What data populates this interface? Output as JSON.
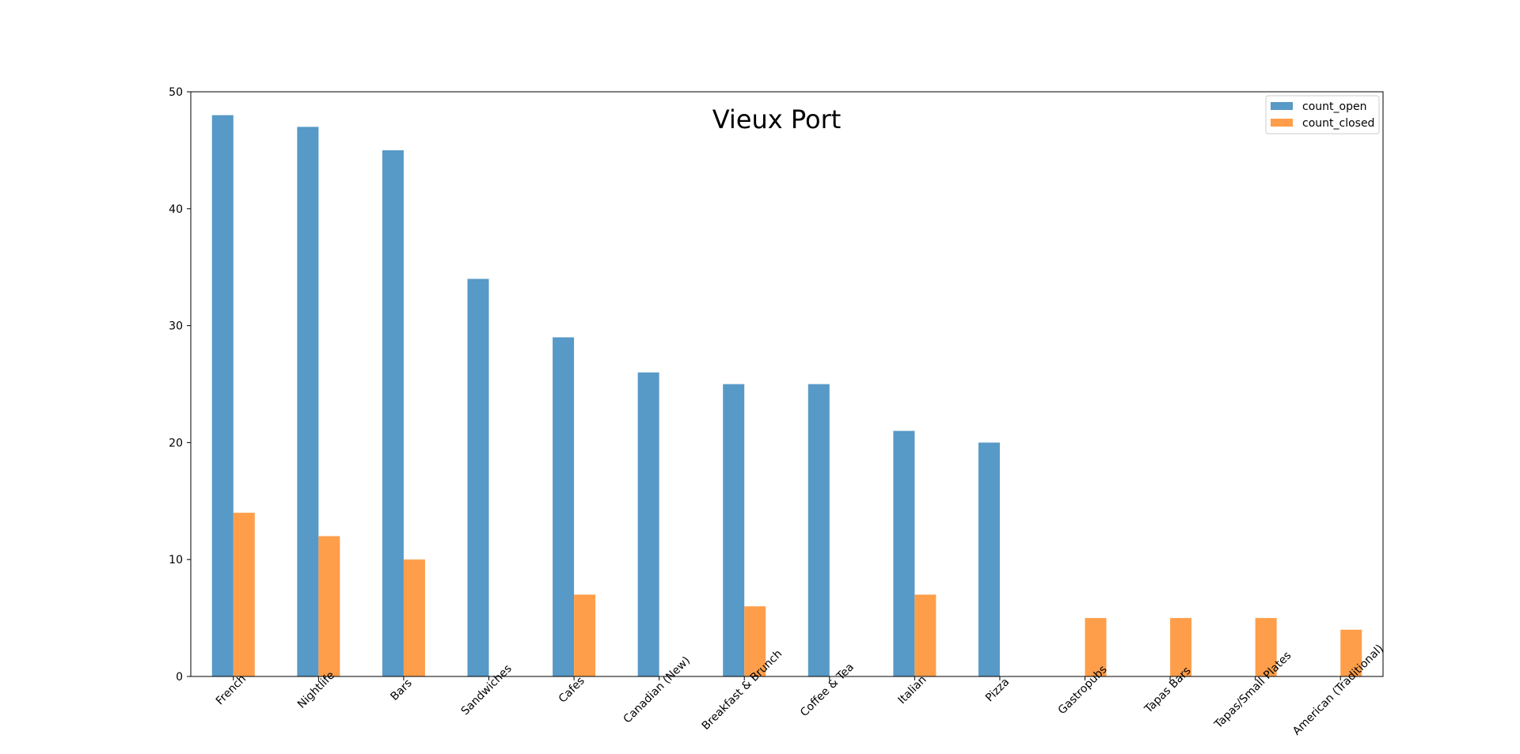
{
  "chart_data": {
    "type": "bar",
    "title": "Vieux Port",
    "xlabel": "",
    "ylabel": "",
    "ylim": [
      0,
      50
    ],
    "yticks": [
      0,
      10,
      20,
      30,
      40,
      50
    ],
    "grid": false,
    "legend_position": "top-right",
    "categories": [
      "French",
      "Nightlife",
      "Bars",
      "Sandwiches",
      "Cafes",
      "Canadian (New)",
      "Breakfast & Brunch",
      "Coffee & Tea",
      "Italian",
      "Pizza",
      "Gastropubs",
      "Tapas Bars",
      "Tapas/Small Plates",
      "American (Traditional)"
    ],
    "series": [
      {
        "name": "count_open",
        "color": "#5799c7",
        "values": [
          48,
          47,
          45,
          34,
          29,
          26,
          25,
          25,
          21,
          20,
          null,
          null,
          null,
          null
        ]
      },
      {
        "name": "count_closed",
        "color": "#ff9e4a",
        "values": [
          14,
          12,
          10,
          null,
          7,
          null,
          6,
          null,
          7,
          null,
          5,
          5,
          5,
          4
        ]
      }
    ]
  }
}
